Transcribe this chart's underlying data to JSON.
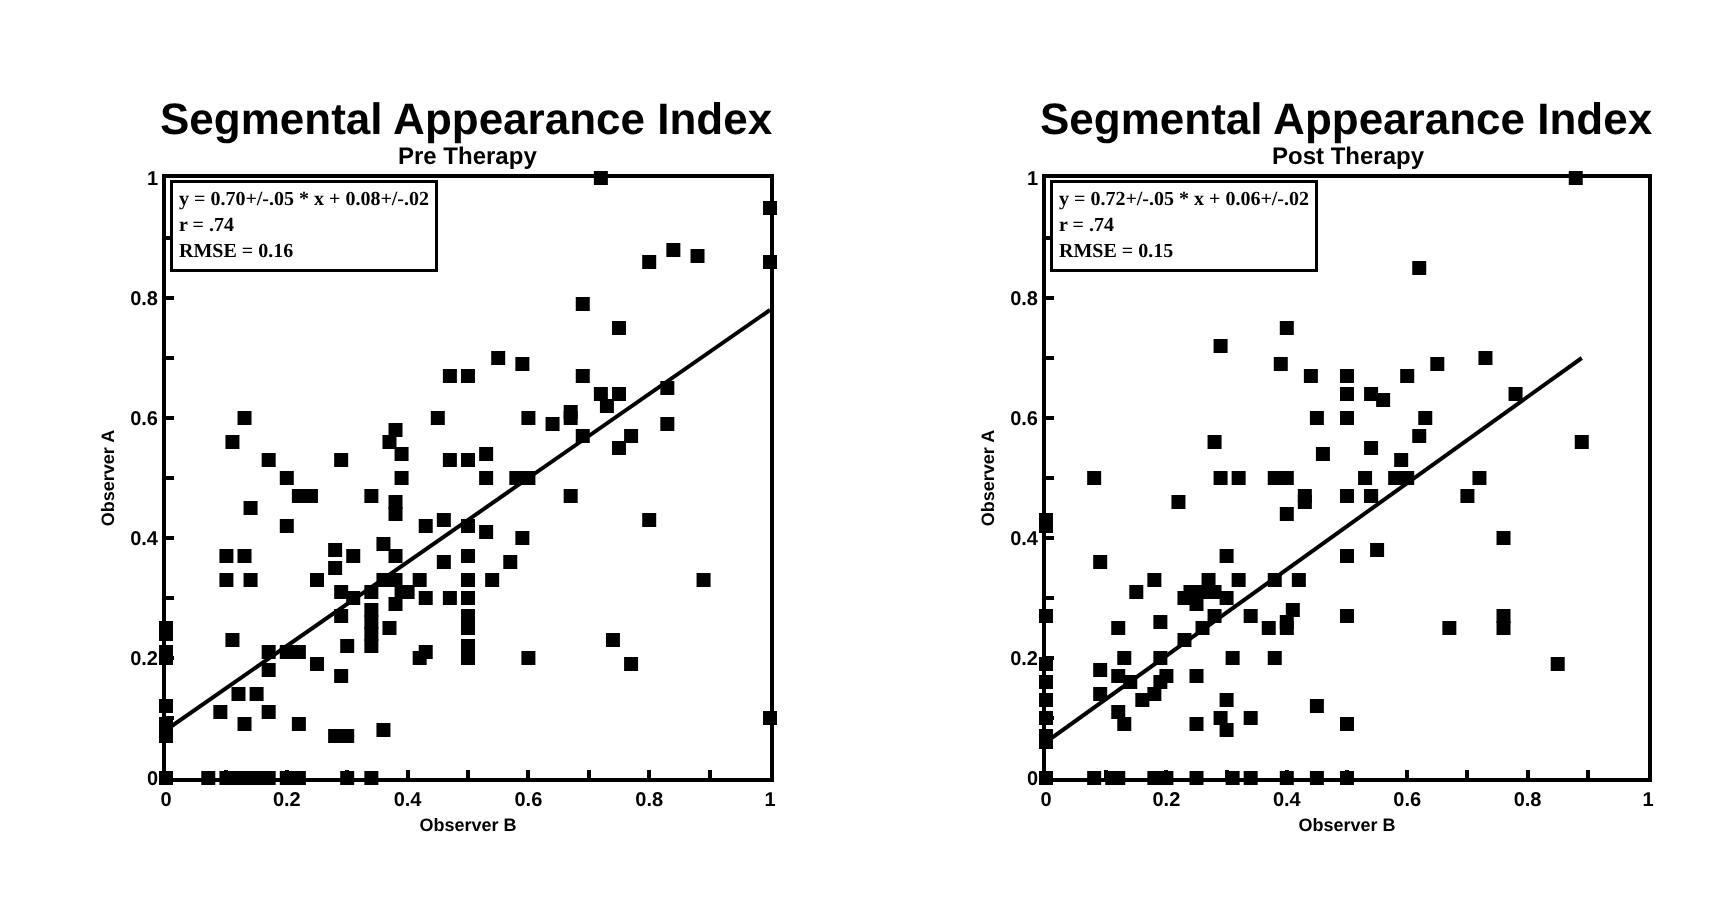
{
  "chart_data": [
    {
      "type": "scatter",
      "title": "Segmental Appearance Index",
      "subtitle": "Pre Therapy",
      "xlabel": "Observer B",
      "ylabel": "Observer A",
      "annotations": [
        "y = 0.70+/-.05 * x + 0.08+/-.02",
        "r = .74",
        "RMSE = 0.16"
      ],
      "xlim": [
        0,
        1
      ],
      "ylim": [
        0,
        1
      ],
      "xticks": [
        0,
        {
          "value": 0.1,
          "label": null
        },
        0.2,
        {
          "value": 0.3,
          "label": null
        },
        0.4,
        {
          "value": 0.5,
          "label": null
        },
        0.6,
        {
          "value": 0.7,
          "label": null
        },
        0.8,
        {
          "value": 0.9,
          "label": null
        },
        1
      ],
      "yticks": [
        0,
        {
          "value": 0.1,
          "label": null
        },
        0.2,
        {
          "value": 0.3,
          "label": null
        },
        0.4,
        {
          "value": 0.5,
          "label": null
        },
        0.6,
        {
          "value": 0.7,
          "label": null
        },
        0.8,
        {
          "value": 0.9,
          "label": null
        },
        1
      ],
      "marker": "square",
      "grid": false,
      "series": [
        {
          "color": "#000000",
          "x": [
            0.72,
            1.0,
            1.0,
            0.8,
            0.84,
            0.88,
            0.69,
            0.75,
            0.55,
            0.59,
            0.47,
            0.5,
            0.69,
            0.72,
            0.75,
            0.83,
            0.13,
            0.11,
            0.17,
            0.2,
            0.29,
            0.38,
            0.37,
            0.39,
            0.39,
            0.45,
            0.47,
            0.5,
            0.53,
            0.53,
            0.6,
            0.64,
            0.67,
            0.67,
            0.69,
            0.73,
            0.75,
            0.77,
            0.83,
            0.58,
            0.6,
            0.67,
            0.22,
            0.24,
            0.34,
            0.38,
            0.14,
            0.2,
            0.38,
            0.43,
            0.46,
            0.5,
            0.53,
            0.59,
            0.8,
            0.1,
            0.13,
            0.1,
            0.14,
            0.28,
            0.28,
            0.31,
            0.25,
            0.36,
            0.38,
            0.36,
            0.38,
            0.42,
            0.46,
            0.5,
            0.5,
            0.54,
            0.57,
            0.89,
            0.29,
            0.31,
            0.34,
            0.34,
            0.34,
            0.34,
            0.34,
            0.38,
            0.39,
            0.4,
            0.43,
            0.47,
            0.37,
            0.5,
            0.5,
            0.5,
            0.5,
            0.5,
            0.3,
            0.29,
            0.11,
            0.17,
            0.2,
            0.22,
            0.17,
            0.42,
            0.43,
            0.6,
            0.74,
            0.77,
            0.25,
            0.29,
            0.12,
            0.15,
            0.09,
            0.17,
            0.13,
            0.22,
            0.28,
            0.3,
            0.36,
            0,
            0,
            0,
            0,
            0,
            0,
            0,
            0,
            1.0,
            0.07,
            0.1,
            0.12,
            0.13,
            0.15,
            0.17,
            0.2,
            0.22,
            0.3,
            0.34
          ],
          "values": [
            1.0,
            0.95,
            0.86,
            0.86,
            0.88,
            0.87,
            0.79,
            0.75,
            0.7,
            0.69,
            0.67,
            0.67,
            0.67,
            0.64,
            0.64,
            0.65,
            0.6,
            0.56,
            0.53,
            0.5,
            0.53,
            0.58,
            0.56,
            0.54,
            0.5,
            0.6,
            0.53,
            0.53,
            0.54,
            0.5,
            0.6,
            0.59,
            0.61,
            0.6,
            0.57,
            0.62,
            0.55,
            0.57,
            0.59,
            0.5,
            0.5,
            0.47,
            0.47,
            0.47,
            0.47,
            0.46,
            0.45,
            0.42,
            0.44,
            0.42,
            0.43,
            0.42,
            0.41,
            0.4,
            0.43,
            0.37,
            0.37,
            0.33,
            0.33,
            0.38,
            0.35,
            0.37,
            0.33,
            0.39,
            0.37,
            0.33,
            0.33,
            0.33,
            0.36,
            0.37,
            0.33,
            0.33,
            0.36,
            0.33,
            0.31,
            0.3,
            0.31,
            0.28,
            0.26,
            0.24,
            0.22,
            0.29,
            0.31,
            0.31,
            0.3,
            0.3,
            0.25,
            0.3,
            0.27,
            0.25,
            0.22,
            0.2,
            0.22,
            0.27,
            0.23,
            0.21,
            0.21,
            0.21,
            0.18,
            0.2,
            0.21,
            0.2,
            0.23,
            0.19,
            0.19,
            0.17,
            0.14,
            0.14,
            0.11,
            0.11,
            0.09,
            0.09,
            0.07,
            0.07,
            0.08,
            0.25,
            0.24,
            0.21,
            0.2,
            0.12,
            0.09,
            0.07,
            0,
            0.1,
            0,
            0,
            0,
            0,
            0,
            0,
            0,
            0,
            0,
            0
          ]
        },
        {
          "type": "line",
          "marker": "none",
          "color": "#000000",
          "x": [
            0,
            1
          ],
          "values": [
            0.08,
            0.78
          ]
        }
      ]
    },
    {
      "type": "scatter",
      "title": "Segmental Appearance Index",
      "subtitle": "Post Therapy",
      "xlabel": "Observer B",
      "ylabel": "Observer A",
      "annotations": [
        "y = 0.72+/-.05 * x + 0.06+/-.02",
        "r = .74",
        "RMSE = 0.15"
      ],
      "xlim": [
        0,
        1
      ],
      "ylim": [
        0,
        1
      ],
      "xticks": [
        0,
        {
          "value": 0.1,
          "label": null
        },
        0.2,
        {
          "value": 0.3,
          "label": null
        },
        0.4,
        {
          "value": 0.5,
          "label": null
        },
        0.6,
        {
          "value": 0.7,
          "label": null
        },
        0.8,
        {
          "value": 0.9,
          "label": null
        },
        1
      ],
      "yticks": [
        0,
        {
          "value": 0.1,
          "label": null
        },
        0.2,
        {
          "value": 0.3,
          "label": null
        },
        0.4,
        {
          "value": 0.5,
          "label": null
        },
        0.6,
        {
          "value": 0.7,
          "label": null
        },
        0.8,
        {
          "value": 0.9,
          "label": null
        },
        1
      ],
      "marker": "square",
      "grid": false,
      "series": [
        {
          "color": "#000000",
          "x": [
            0.88,
            0.62,
            0.4,
            0.29,
            0.39,
            0.44,
            0.5,
            0.5,
            0.54,
            0.56,
            0.6,
            0.65,
            0.73,
            0.78,
            0.45,
            0.5,
            0.63,
            0.62,
            0.28,
            0.46,
            0.54,
            0.59,
            0.89,
            0.08,
            0.29,
            0.32,
            0.38,
            0.4,
            0.53,
            0.58,
            0.6,
            0.72,
            0.7,
            0.43,
            0.5,
            0.54,
            0.22,
            0.4,
            0.43,
            0.54,
            0,
            0,
            0.76,
            0.5,
            0.55,
            0.09,
            0.3,
            0.18,
            0.27,
            0.32,
            0.38,
            0.42,
            0.15,
            0.23,
            0.24,
            0.26,
            0.28,
            0.3,
            0.25,
            0.34,
            0.28,
            0.41,
            0.4,
            0.4,
            0.5,
            0.12,
            0.19,
            0.26,
            0.23,
            0.37,
            0.67,
            0.76,
            0.76,
            0,
            0.13,
            0.19,
            0.31,
            0.38,
            0.09,
            0.12,
            0.14,
            0.2,
            0.25,
            0.85,
            0.09,
            0.16,
            0.18,
            0.19,
            0.12,
            0.13,
            0.25,
            0.3,
            0.29,
            0.3,
            0.34,
            0.45,
            0.5,
            0,
            0,
            0,
            0,
            0,
            0,
            0,
            0.08,
            0.11,
            0.12,
            0.18,
            0.2,
            0.25,
            0.31,
            0.34,
            0.4,
            0.45,
            0.5
          ],
          "values": [
            1.0,
            0.85,
            0.75,
            0.72,
            0.69,
            0.67,
            0.67,
            0.64,
            0.64,
            0.63,
            0.67,
            0.69,
            0.7,
            0.64,
            0.6,
            0.6,
            0.6,
            0.57,
            0.56,
            0.54,
            0.55,
            0.53,
            0.56,
            0.5,
            0.5,
            0.5,
            0.5,
            0.5,
            0.5,
            0.5,
            0.5,
            0.5,
            0.47,
            0.47,
            0.47,
            0.47,
            0.46,
            0.44,
            0.46,
            0.47,
            0.43,
            0.42,
            0.4,
            0.37,
            0.38,
            0.36,
            0.37,
            0.33,
            0.33,
            0.33,
            0.33,
            0.33,
            0.31,
            0.3,
            0.31,
            0.31,
            0.31,
            0.3,
            0.29,
            0.27,
            0.27,
            0.28,
            0.26,
            0.25,
            0.27,
            0.25,
            0.26,
            0.25,
            0.23,
            0.25,
            0.25,
            0.27,
            0.25,
            0.27,
            0.2,
            0.2,
            0.2,
            0.2,
            0.18,
            0.17,
            0.16,
            0.17,
            0.17,
            0.19,
            0.14,
            0.13,
            0.14,
            0.16,
            0.11,
            0.09,
            0.09,
            0.13,
            0.1,
            0.08,
            0.1,
            0.12,
            0.09,
            0.19,
            0.16,
            0.13,
            0.1,
            0.07,
            0.06,
            0,
            0,
            0,
            0,
            0,
            0,
            0,
            0,
            0,
            0,
            0,
            0
          ]
        },
        {
          "type": "line",
          "marker": "none",
          "color": "#000000",
          "x": [
            0,
            0.89
          ],
          "values": [
            0.06,
            0.7
          ]
        }
      ]
    }
  ]
}
